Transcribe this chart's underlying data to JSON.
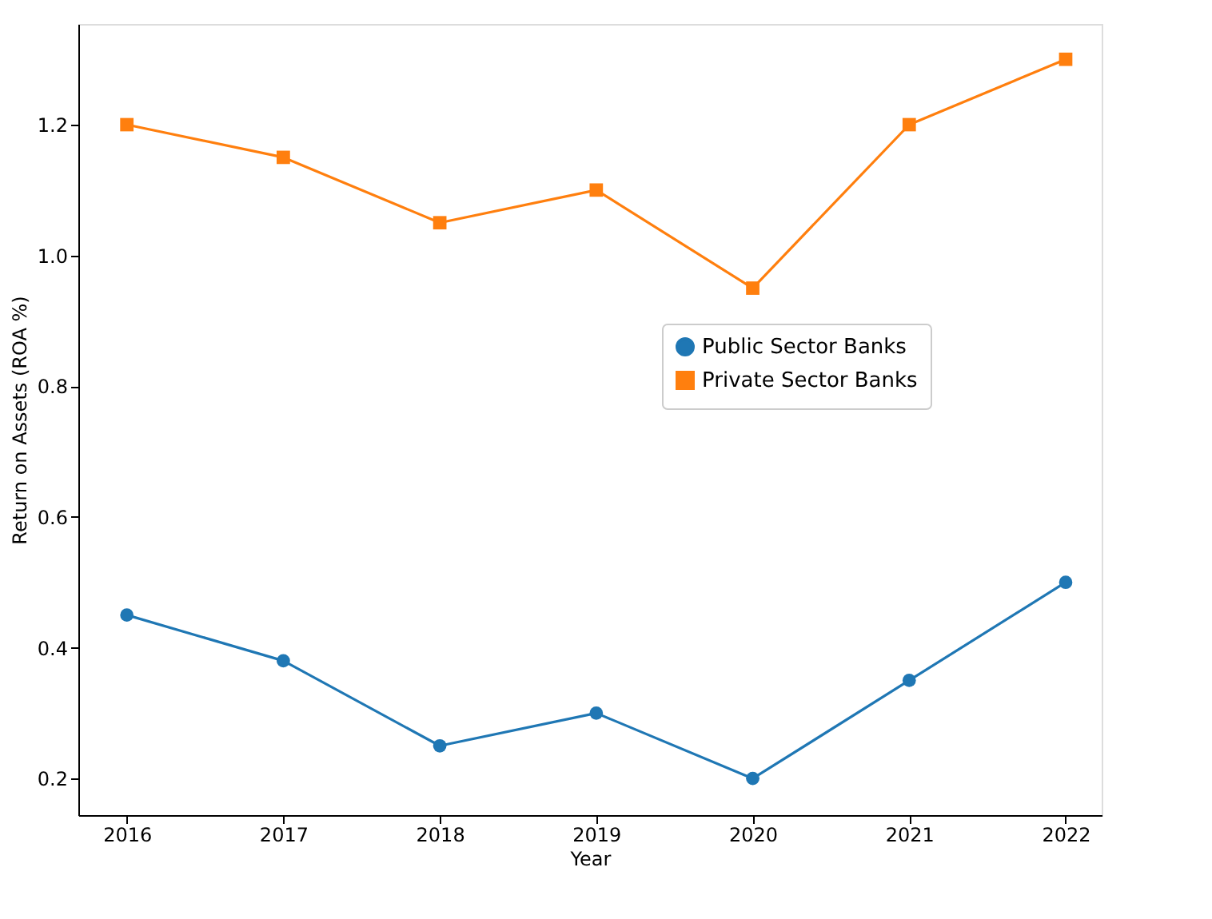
{
  "chart_data": {
    "type": "line",
    "xlabel": "Year",
    "ylabel": "Return on Assets (ROA %)",
    "x": [
      2016,
      2017,
      2018,
      2019,
      2020,
      2021,
      2022
    ],
    "series": [
      {
        "name": "Public Sector Banks",
        "color": "#1f77b4",
        "marker": "circle",
        "values": [
          0.45,
          0.38,
          0.25,
          0.3,
          0.2,
          0.35,
          0.5
        ]
      },
      {
        "name": "Private Sector Banks",
        "color": "#ff7f0e",
        "marker": "square",
        "values": [
          1.2,
          1.15,
          1.05,
          1.1,
          0.95,
          1.2,
          1.3
        ]
      }
    ],
    "xlim": [
      2015.69,
      2022.23
    ],
    "xticks": [
      2016,
      2017,
      2018,
      2019,
      2020,
      2021,
      2022
    ],
    "ylim": [
      0.144,
      1.354
    ],
    "yticks": [
      0.2,
      0.4,
      0.6,
      0.8,
      {
        "value": 1,
        "label": "1.0"
      },
      1.2
    ],
    "grid": false,
    "legend": "center right",
    "line_style": "solid"
  }
}
